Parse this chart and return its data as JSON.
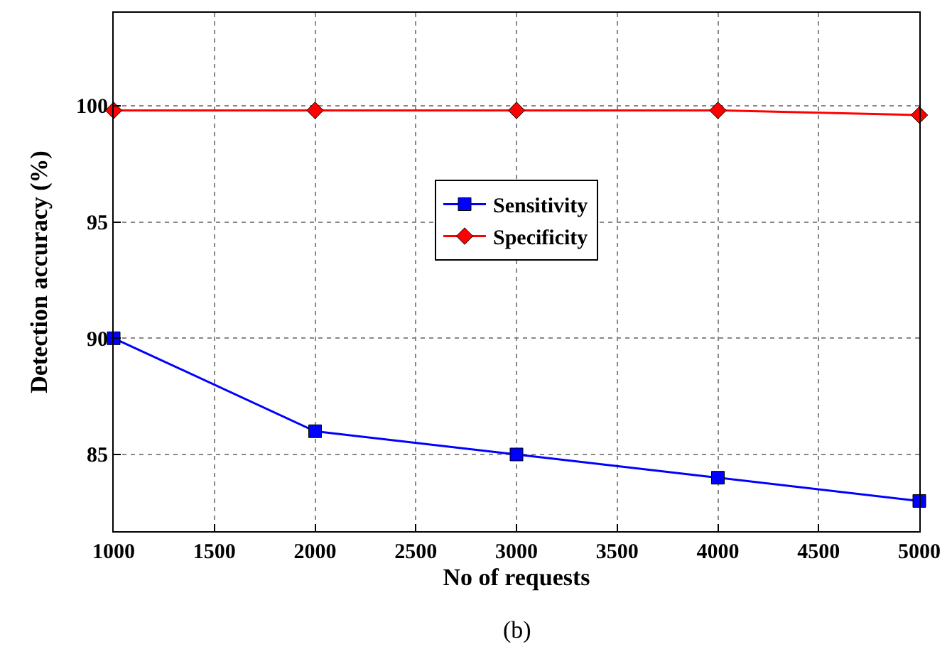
{
  "chart_data": {
    "type": "line",
    "xlabel": "No of requests",
    "ylabel": "Detection accuracy (%)",
    "x": [
      1000,
      2000,
      3000,
      4000,
      5000
    ],
    "series": [
      {
        "name": "Sensitivity",
        "color": "#0000ff",
        "marker": "square",
        "values": [
          90,
          86,
          85,
          84,
          83
        ]
      },
      {
        "name": "Specificity",
        "color": "#ff0000",
        "marker": "diamond",
        "values": [
          99.8,
          99.8,
          99.8,
          99.8,
          99.6
        ]
      }
    ],
    "xlim": [
      1000,
      5000
    ],
    "xticks": [
      1000,
      1500,
      2000,
      2500,
      3000,
      3500,
      4000,
      4500,
      5000
    ],
    "ylim": [
      81.7,
      104
    ],
    "yticks": [
      85,
      90,
      95,
      100
    ],
    "grid": true,
    "legend": "center",
    "line_style": "solid",
    "annotations": [
      "(b)"
    ]
  }
}
